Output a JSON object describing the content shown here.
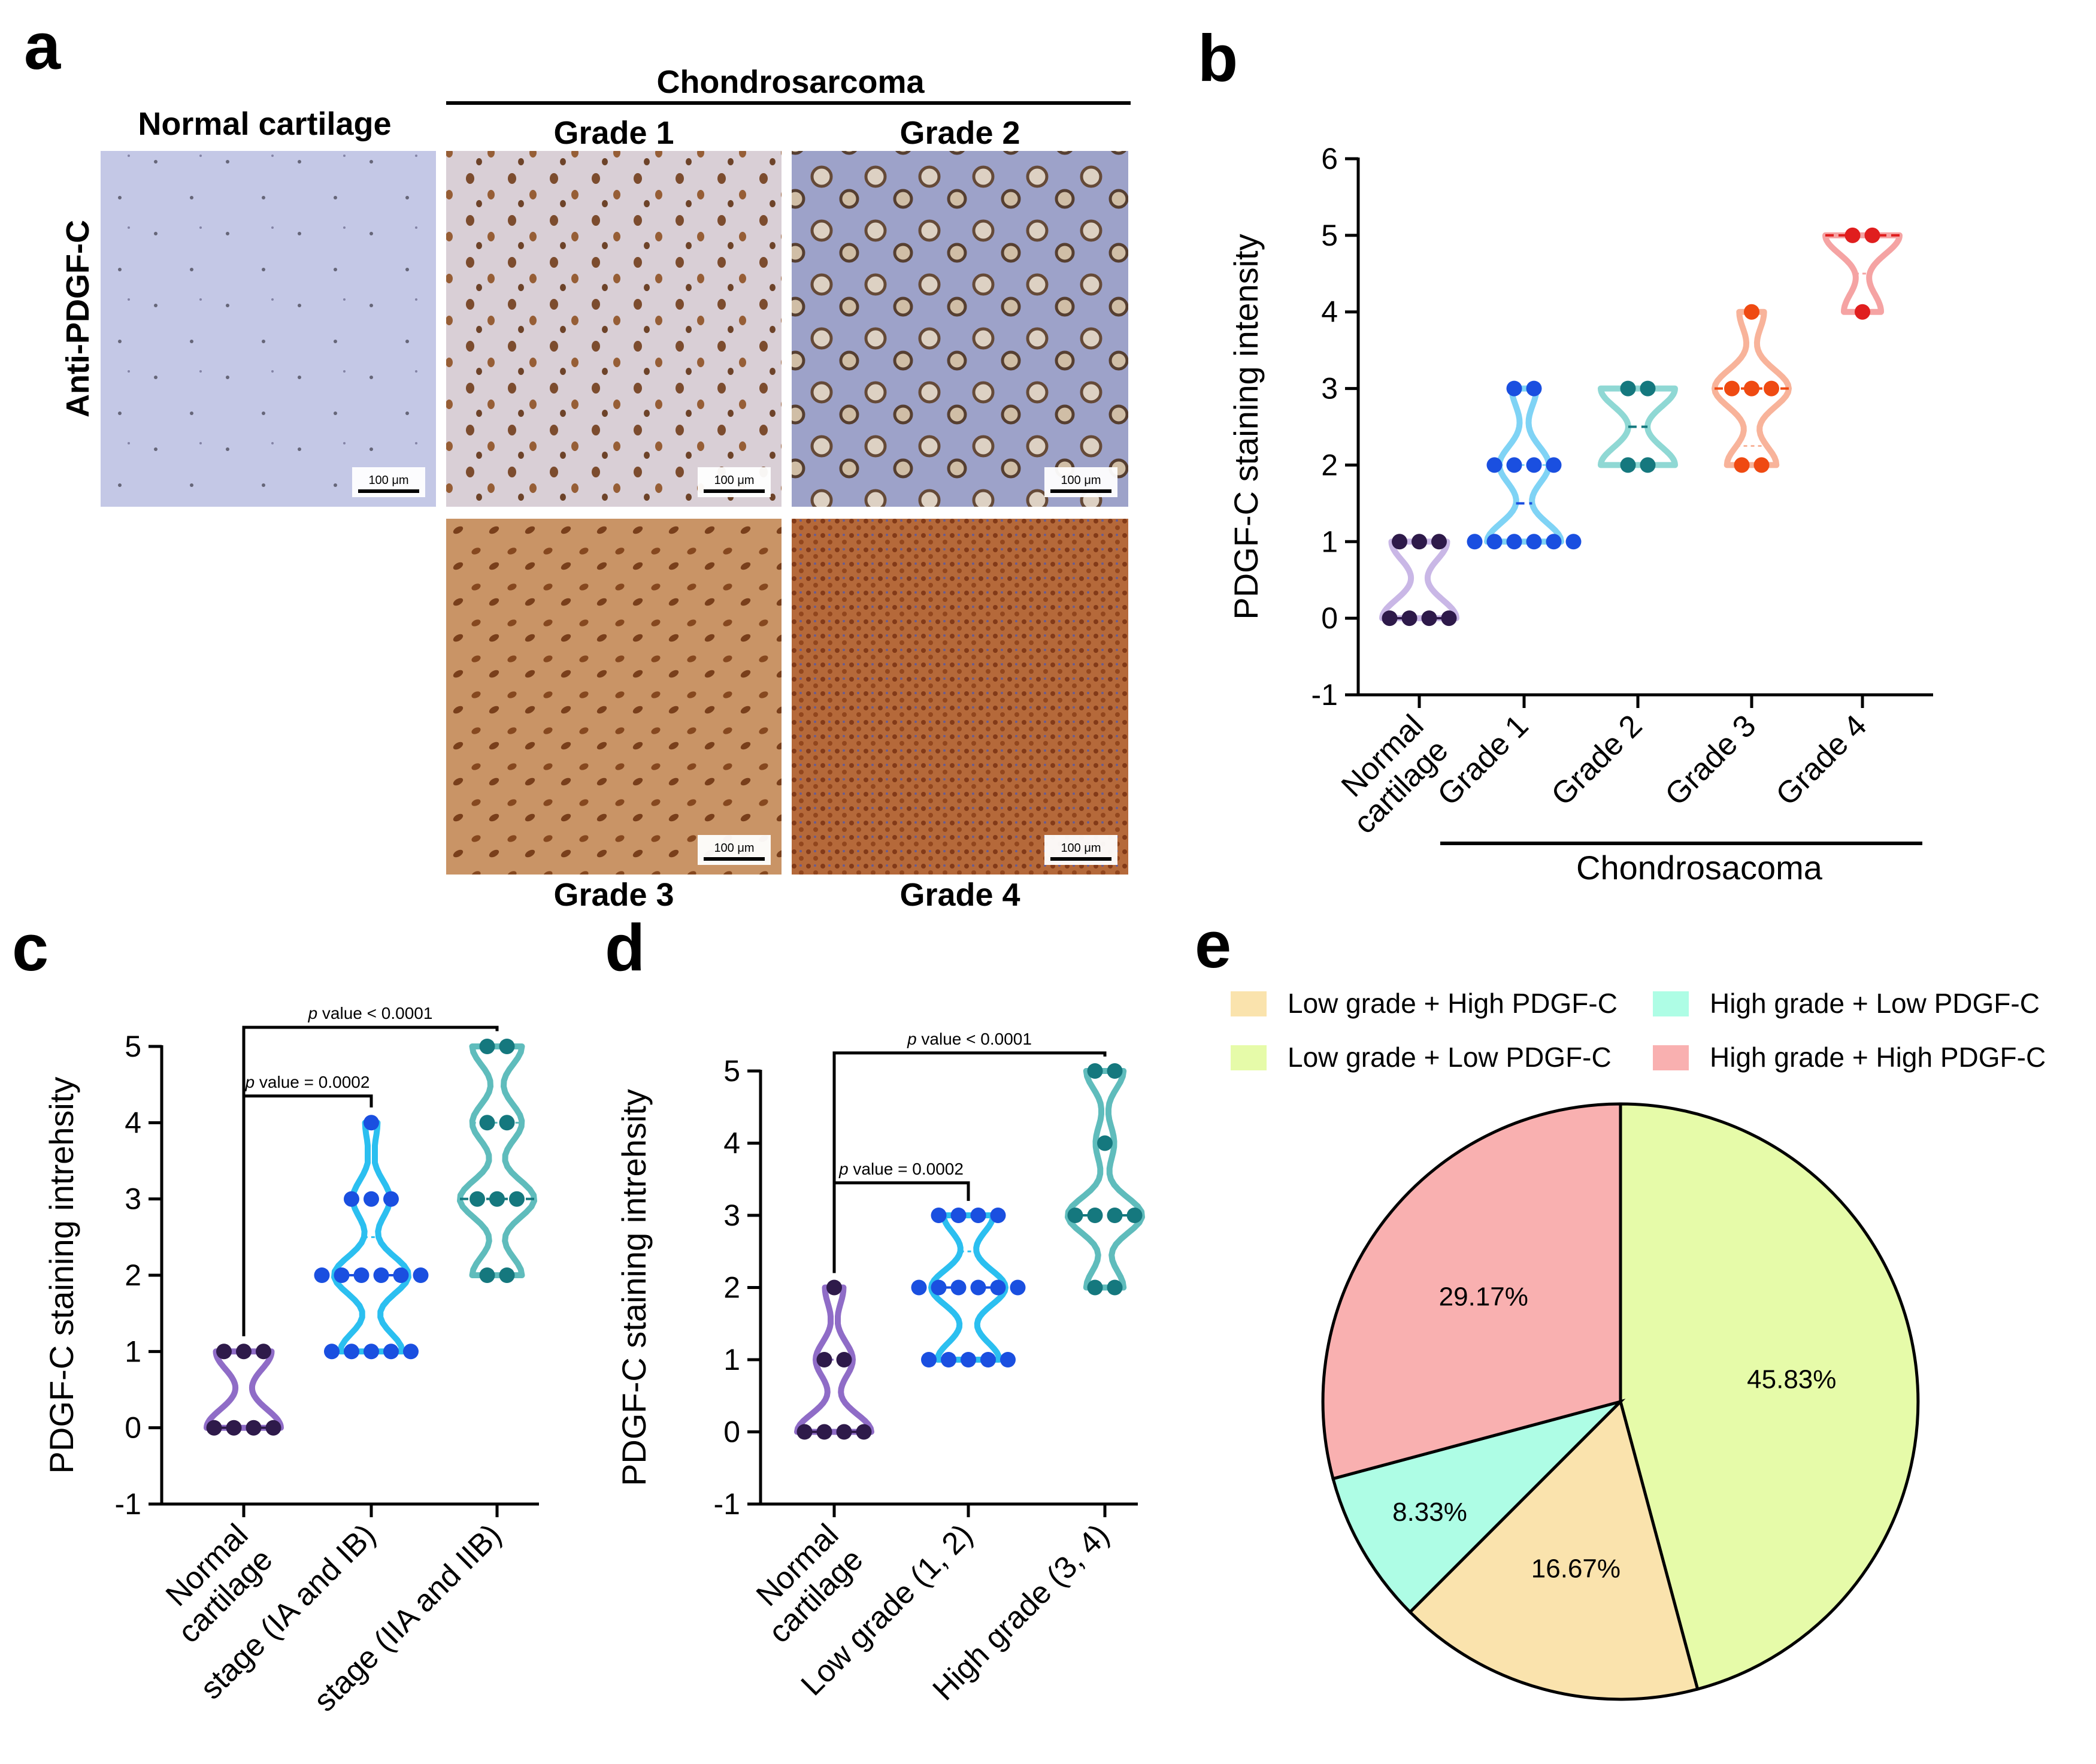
{
  "panel_labels": {
    "a": "a",
    "b": "b",
    "c": "c",
    "d": "d",
    "e": "e"
  },
  "micrographs": {
    "group_title": "Chondrosarcoma",
    "normal_title": "Normal cartilage",
    "row_label": "Anti-PDGF-C",
    "scale_bar": "100 μm",
    "tiles": [
      {
        "label": "Normal cartilage",
        "tone": "#c4c8e6"
      },
      {
        "label": "Grade 1",
        "tone": "#d9cfd6"
      },
      {
        "label": "Grade 2",
        "tone": "#9da2c9"
      },
      {
        "label": "Grade 3",
        "tone": "#c99466"
      },
      {
        "label": "Grade 4",
        "tone": "#b5693a"
      }
    ]
  },
  "chart_data": [
    {
      "panel": "b",
      "type": "violin-scatter",
      "ylabel": "PDGF-C staining intensity",
      "ylim": [
        -1,
        6
      ],
      "yticks": [
        -1,
        0,
        1,
        2,
        3,
        4,
        5,
        6
      ],
      "bracket_label": "Chondrosacoma",
      "categories": [
        "Normal cartilage",
        "Grade 1",
        "Grade 2",
        "Grade 3",
        "Grade 4"
      ],
      "category_lines": [
        [
          "Normal",
          "cartilage"
        ],
        [
          "Grade 1"
        ],
        [
          "Grade 2"
        ],
        [
          "Grade 3"
        ],
        [
          "Grade 4"
        ]
      ],
      "series": [
        {
          "name": "Normal cartilage",
          "color": "#2e1a4a",
          "fill": "#c9b7e6",
          "values": [
            1,
            1,
            1,
            0,
            0,
            0,
            0
          ]
        },
        {
          "name": "Grade 1",
          "color": "#1a4fe0",
          "fill": "#7fd3f5",
          "values": [
            3,
            3,
            2,
            2,
            2,
            2,
            1,
            1,
            1,
            1,
            1,
            1
          ]
        },
        {
          "name": "Grade 2",
          "color": "#15787e",
          "fill": "#8fd8d4",
          "values": [
            3,
            3,
            2,
            2
          ]
        },
        {
          "name": "Grade 3",
          "color": "#ef4a12",
          "fill": "#f8b39a",
          "values": [
            4,
            3,
            3,
            3,
            2,
            2
          ]
        },
        {
          "name": "Grade 4",
          "color": "#e01e1e",
          "fill": "#f5a3a3",
          "values": [
            5,
            5,
            4
          ]
        }
      ]
    },
    {
      "panel": "c",
      "type": "violin-scatter",
      "ylabel": "PDGF-C staining intrehsity",
      "ylim": [
        -1,
        5
      ],
      "yticks": [
        -1,
        0,
        1,
        2,
        3,
        4,
        5
      ],
      "categories": [
        "Normal cartilage",
        "stage (IA and IB)",
        "stage (IIA and IIB)"
      ],
      "category_lines": [
        [
          "Normal",
          "cartilage"
        ],
        [
          "stage (IA and IB)"
        ],
        [
          "stage (IIA and IIB)"
        ]
      ],
      "comparisons": [
        {
          "from": 0,
          "to": 1,
          "level": 4.35,
          "p_italic": "p",
          "label": " value = 0.0002"
        },
        {
          "from": 0,
          "to": 2,
          "level": 5.25,
          "p_italic": "p",
          "label": " value < 0.0001"
        }
      ],
      "series": [
        {
          "name": "Normal cartilage",
          "color": "#2e1a4a",
          "fill": "#8f6cc7",
          "values": [
            1,
            1,
            1,
            0,
            0,
            0,
            0
          ]
        },
        {
          "name": "stage (IA and IB)",
          "color": "#1a4fe0",
          "fill": "#2bbff0",
          "values": [
            4,
            3,
            3,
            3,
            2,
            2,
            2,
            2,
            2,
            2,
            1,
            1,
            1,
            1,
            1
          ]
        },
        {
          "name": "stage (IIA and IIB)",
          "color": "#15787e",
          "fill": "#5fbcbc",
          "values": [
            5,
            5,
            4,
            4,
            3,
            3,
            3,
            2,
            2
          ]
        }
      ]
    },
    {
      "panel": "d",
      "type": "violin-scatter",
      "ylabel": "PDGF-C staining intrehsity",
      "ylim": [
        -1,
        5
      ],
      "yticks": [
        -1,
        0,
        1,
        2,
        3,
        4,
        5
      ],
      "categories": [
        "Normal cartilage",
        "Low grade (1, 2)",
        "High grade (3, 4)"
      ],
      "category_lines": [
        [
          "Normal",
          "cartilage"
        ],
        [
          "Low grade (1, 2)"
        ],
        [
          "High grade (3, 4)"
        ]
      ],
      "comparisons": [
        {
          "from": 0,
          "to": 1,
          "level": 3.45,
          "p_italic": "p",
          "label": " value = 0.0002"
        },
        {
          "from": 0,
          "to": 2,
          "level": 5.25,
          "p_italic": "p",
          "label": " value < 0.0001"
        }
      ],
      "series": [
        {
          "name": "Normal cartilage",
          "color": "#2e1a4a",
          "fill": "#8f6cc7",
          "values": [
            2,
            1,
            1,
            0,
            0,
            0,
            0
          ]
        },
        {
          "name": "Low grade (1, 2)",
          "color": "#1a4fe0",
          "fill": "#2bbff0",
          "values": [
            3,
            3,
            3,
            3,
            2,
            2,
            2,
            2,
            2,
            2,
            1,
            1,
            1,
            1,
            1
          ]
        },
        {
          "name": "High grade (3, 4)",
          "color": "#15787e",
          "fill": "#5fbcbc",
          "values": [
            5,
            5,
            4,
            3,
            3,
            3,
            3,
            2,
            2
          ]
        }
      ]
    },
    {
      "panel": "e",
      "type": "pie",
      "slices": [
        {
          "label": "Low grade + Low PDGF-C",
          "value": 45.83,
          "text": "45.83%",
          "color": "#e6fba9"
        },
        {
          "label": "Low grade + High PDGF-C",
          "value": 16.67,
          "text": "16.67%",
          "color": "#fae3ad"
        },
        {
          "label": "High grade + Low PDGF-C",
          "value": 8.33,
          "text": "8.33%",
          "color": "#aefde5"
        },
        {
          "label": "High grade + High PDGF-C",
          "value": 29.17,
          "text": "29.17%",
          "color": "#f9b0b0"
        }
      ],
      "legend_order": [
        1,
        2,
        0,
        3
      ]
    }
  ]
}
